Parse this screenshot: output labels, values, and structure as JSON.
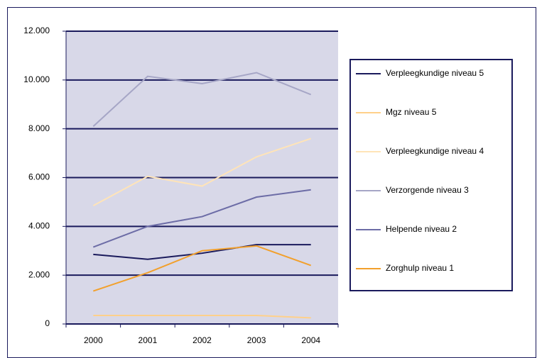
{
  "chart_data": {
    "type": "line",
    "categories": [
      "2000",
      "2001",
      "2002",
      "2003",
      "2004"
    ],
    "series": [
      {
        "name": "Verpleegkundige niveau 5",
        "color": "#1a1a5c",
        "values": [
          2850,
          2650,
          2900,
          3250,
          3250
        ]
      },
      {
        "name": "Mgz niveau 5",
        "color": "#ffd08a",
        "values": [
          350,
          350,
          350,
          350,
          250
        ]
      },
      {
        "name": "Verpleegkundige niveau 4",
        "color": "#ffe4b8",
        "values": [
          4850,
          6050,
          5650,
          6850,
          7600
        ]
      },
      {
        "name": "Verzorgende niveau 3",
        "color": "#a6a6c6",
        "values": [
          8100,
          10150,
          9850,
          10300,
          9400
        ]
      },
      {
        "name": "Helpende niveau 2",
        "color": "#6c6ca6",
        "values": [
          3150,
          4000,
          4400,
          5200,
          5500
        ]
      },
      {
        "name": "Zorghulp niveau 1",
        "color": "#f2a02c",
        "values": [
          1350,
          2100,
          3000,
          3200,
          2400
        ]
      }
    ],
    "ylim": [
      0,
      12000
    ],
    "yticks": [
      0,
      {
        "value": 2000,
        "label": "2.000"
      },
      {
        "value": 4000,
        "label": "4.000"
      },
      {
        "value": 6000,
        "label": "6.000"
      },
      {
        "value": 8000,
        "label": "8.000"
      },
      {
        "value": 10000,
        "label": "10.000"
      },
      {
        "value": 12000,
        "label": "12.000"
      }
    ],
    "grid": true,
    "legend": "right"
  }
}
